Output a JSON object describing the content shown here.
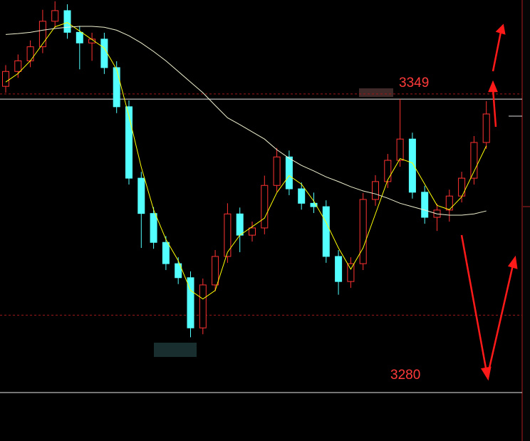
{
  "chart_data": {
    "type": "candlestick",
    "open": [
      3352.0,
      3355.5,
      3358.0,
      3361.3,
      3367.3,
      3369.8,
      3364.7,
      3362.2,
      3363.1,
      3356.4,
      3347.2,
      3330.4,
      3322.1,
      3315.3,
      3310.3,
      3307.0,
      3295.2,
      3305.3,
      3312.0,
      3322.0,
      3317.0,
      3318.7,
      3328.7,
      3335.4,
      3327.9,
      3324.5,
      3323.7,
      3312.0,
      3306.1,
      3310.3,
      3325.4,
      3329.6,
      3334.6,
      3339.6,
      3327.1,
      3321.2,
      3322.9,
      3326.2,
      3330.4,
      3338.8
    ],
    "high": [
      3357.0,
      3359.5,
      3362.8,
      3370.0,
      3372.0,
      3371.3,
      3366.2,
      3364.6,
      3364.6,
      3357.9,
      3348.7,
      3331.9,
      3323.6,
      3316.8,
      3311.8,
      3308.5,
      3306.8,
      3313.5,
      3324.5,
      3323.5,
      3320.2,
      3331.0,
      3337.5,
      3336.9,
      3329.4,
      3327.0,
      3325.2,
      3313.5,
      3311.8,
      3326.9,
      3331.1,
      3336.1,
      3349.0,
      3341.1,
      3328.6,
      3324.4,
      3327.7,
      3331.9,
      3340.3,
      3348.5
    ],
    "low": [
      3350.5,
      3354.0,
      3356.5,
      3359.8,
      3365.8,
      3363.2,
      3356.0,
      3358.0,
      3354.9,
      3345.7,
      3328.9,
      3314.0,
      3313.8,
      3308.8,
      3305.5,
      3293.0,
      3293.7,
      3303.8,
      3310.5,
      3313.0,
      3315.5,
      3317.2,
      3327.2,
      3326.4,
      3323.0,
      3322.2,
      3310.5,
      3303.0,
      3304.6,
      3308.8,
      3323.9,
      3328.1,
      3333.1,
      3325.6,
      3319.7,
      3318.0,
      3320.2,
      3324.7,
      3328.9,
      3337.3
    ],
    "close": [
      3355.5,
      3358.0,
      3361.3,
      3367.3,
      3369.8,
      3364.7,
      3362.2,
      3363.1,
      3356.4,
      3347.2,
      3330.4,
      3322.1,
      3315.3,
      3310.3,
      3307.0,
      3295.2,
      3305.3,
      3312.0,
      3322.0,
      3317.0,
      3318.7,
      3328.7,
      3335.4,
      3327.9,
      3324.5,
      3323.7,
      3312.0,
      3306.1,
      3310.3,
      3325.4,
      3329.6,
      3334.6,
      3339.6,
      3327.1,
      3321.2,
      3322.9,
      3326.2,
      3330.4,
      3338.8,
      3345.5
    ],
    "up_color": "#ff3232",
    "down_color": "#54ffff",
    "ma_lines": [
      {
        "color": "#ffff00",
        "values": [
          3353,
          3355,
          3358,
          3362,
          3366,
          3367,
          3365,
          3363,
          3361,
          3356,
          3345,
          3333,
          3323,
          3316,
          3311,
          3304,
          3302,
          3304,
          3313,
          3317,
          3319,
          3321,
          3327,
          3331,
          3329,
          3325,
          3320,
          3314,
          3309,
          3314,
          3322,
          3330,
          3335,
          3334,
          3329,
          3324,
          3323,
          3326,
          3332,
          3338
        ]
      },
      {
        "color": "#f0f0d0",
        "values": [
          3364.2,
          3364.4,
          3364.7,
          3365.2,
          3365.6,
          3365.9,
          3366.1,
          3366.1,
          3365.9,
          3365.2,
          3363.9,
          3362.2,
          3360.2,
          3358.0,
          3355.5,
          3353.0,
          3350.5,
          3347.5,
          3344.6,
          3343.0,
          3341.3,
          3339.6,
          3337.1,
          3335.1,
          3333.4,
          3332.1,
          3330.7,
          3329.6,
          3328.4,
          3327.4,
          3326.7,
          3325.7,
          3324.5,
          3323.7,
          3322.9,
          3322.0,
          3321.7,
          3321.7,
          3322.0,
          3322.7
        ]
      }
    ],
    "levels": [
      3349,
      3280
    ],
    "dashed_levels": [
      3350.2,
      3298.2
    ],
    "ylim": [
      3268.6,
      3372.3
    ]
  }
}
